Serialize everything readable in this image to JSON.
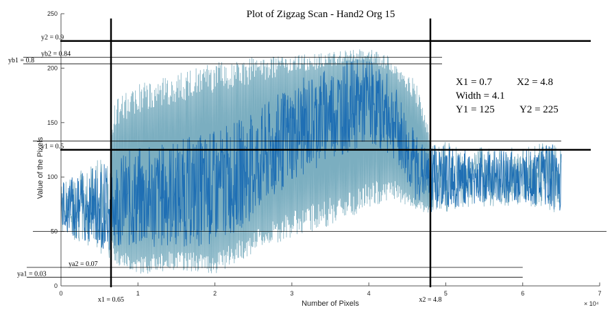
{
  "chart_data": {
    "type": "line",
    "title": "Plot of Zigzag Scan - Hand2 Org 15",
    "xlabel": "Number of Pixels",
    "ylabel": "Value of the Pixels",
    "x_multiplier_label": "× 10⁴",
    "xlim": [
      0,
      7
    ],
    "ylim": [
      0,
      250
    ],
    "x_ticks": [
      0,
      1,
      2,
      3,
      4,
      5,
      6,
      7
    ],
    "y_ticks": [
      0,
      50,
      100,
      150,
      200,
      250
    ],
    "x_tick_labels": [
      "0",
      "1",
      "2",
      "3",
      "4",
      "5",
      "6",
      "7"
    ],
    "y_tick_labels": [
      "0",
      "50",
      "100",
      "150",
      "200",
      "250"
    ],
    "grid": false,
    "series_color": "#1f6fb4",
    "series_color_light": "#5a9ab0",
    "signal_envelope": [
      {
        "x": 0.0,
        "min": 45,
        "max": 95,
        "mean": 72
      },
      {
        "x": 0.65,
        "min": 40,
        "max": 140,
        "mean": 75
      },
      {
        "x": 0.7,
        "min": 20,
        "max": 170,
        "mean": 78
      },
      {
        "x": 1.0,
        "min": 10,
        "max": 185,
        "mean": 80
      },
      {
        "x": 1.5,
        "min": 15,
        "max": 195,
        "mean": 85
      },
      {
        "x": 2.0,
        "min": 10,
        "max": 205,
        "mean": 90
      },
      {
        "x": 2.5,
        "min": 30,
        "max": 210,
        "mean": 110
      },
      {
        "x": 3.0,
        "min": 45,
        "max": 212,
        "mean": 140
      },
      {
        "x": 3.5,
        "min": 55,
        "max": 215,
        "mean": 160
      },
      {
        "x": 4.0,
        "min": 70,
        "max": 218,
        "mean": 170
      },
      {
        "x": 4.3,
        "min": 80,
        "max": 210,
        "mean": 155
      },
      {
        "x": 4.6,
        "min": 70,
        "max": 190,
        "mean": 110
      },
      {
        "x": 4.8,
        "min": 65,
        "max": 140,
        "mean": 100
      },
      {
        "x": 5.0,
        "min": 65,
        "max": 130,
        "mean": 100
      },
      {
        "x": 5.5,
        "min": 70,
        "max": 125,
        "mean": 100
      },
      {
        "x": 6.0,
        "min": 70,
        "max": 125,
        "mean": 100
      },
      {
        "x": 6.5,
        "min": 60,
        "max": 130,
        "mean": 100
      }
    ],
    "vertical_lines": [
      {
        "label": "x1 = 0.65",
        "x": 0.65
      },
      {
        "label": "x2 = 4.8",
        "x": 4.8
      }
    ],
    "horizontal_lines": [
      {
        "label": "y2 = 0.9",
        "y": 225,
        "style": "thick"
      },
      {
        "label": "yb2 = 0.84",
        "y": 210,
        "style": "thin"
      },
      {
        "label": "yb1 = 0.8",
        "y": 204,
        "style": "thin"
      },
      {
        "label": "y1 = 0.5",
        "y": 125,
        "style": "thick"
      },
      {
        "label": "ya2 = 0.07",
        "y": 17,
        "style": "thin"
      },
      {
        "label": "ya1 = 0.03",
        "y": 8,
        "style": "thin"
      }
    ],
    "extra_lines": [
      {
        "y": 133,
        "x_end": 6.5
      },
      {
        "y": 50,
        "x_end": 7
      }
    ],
    "summary": {
      "x1": "X1 = 0.7",
      "x2": "X2 = 4.8",
      "width": "Width = 4.1",
      "y1": "Y1 = 125",
      "y2": "Y2 = 225"
    }
  }
}
